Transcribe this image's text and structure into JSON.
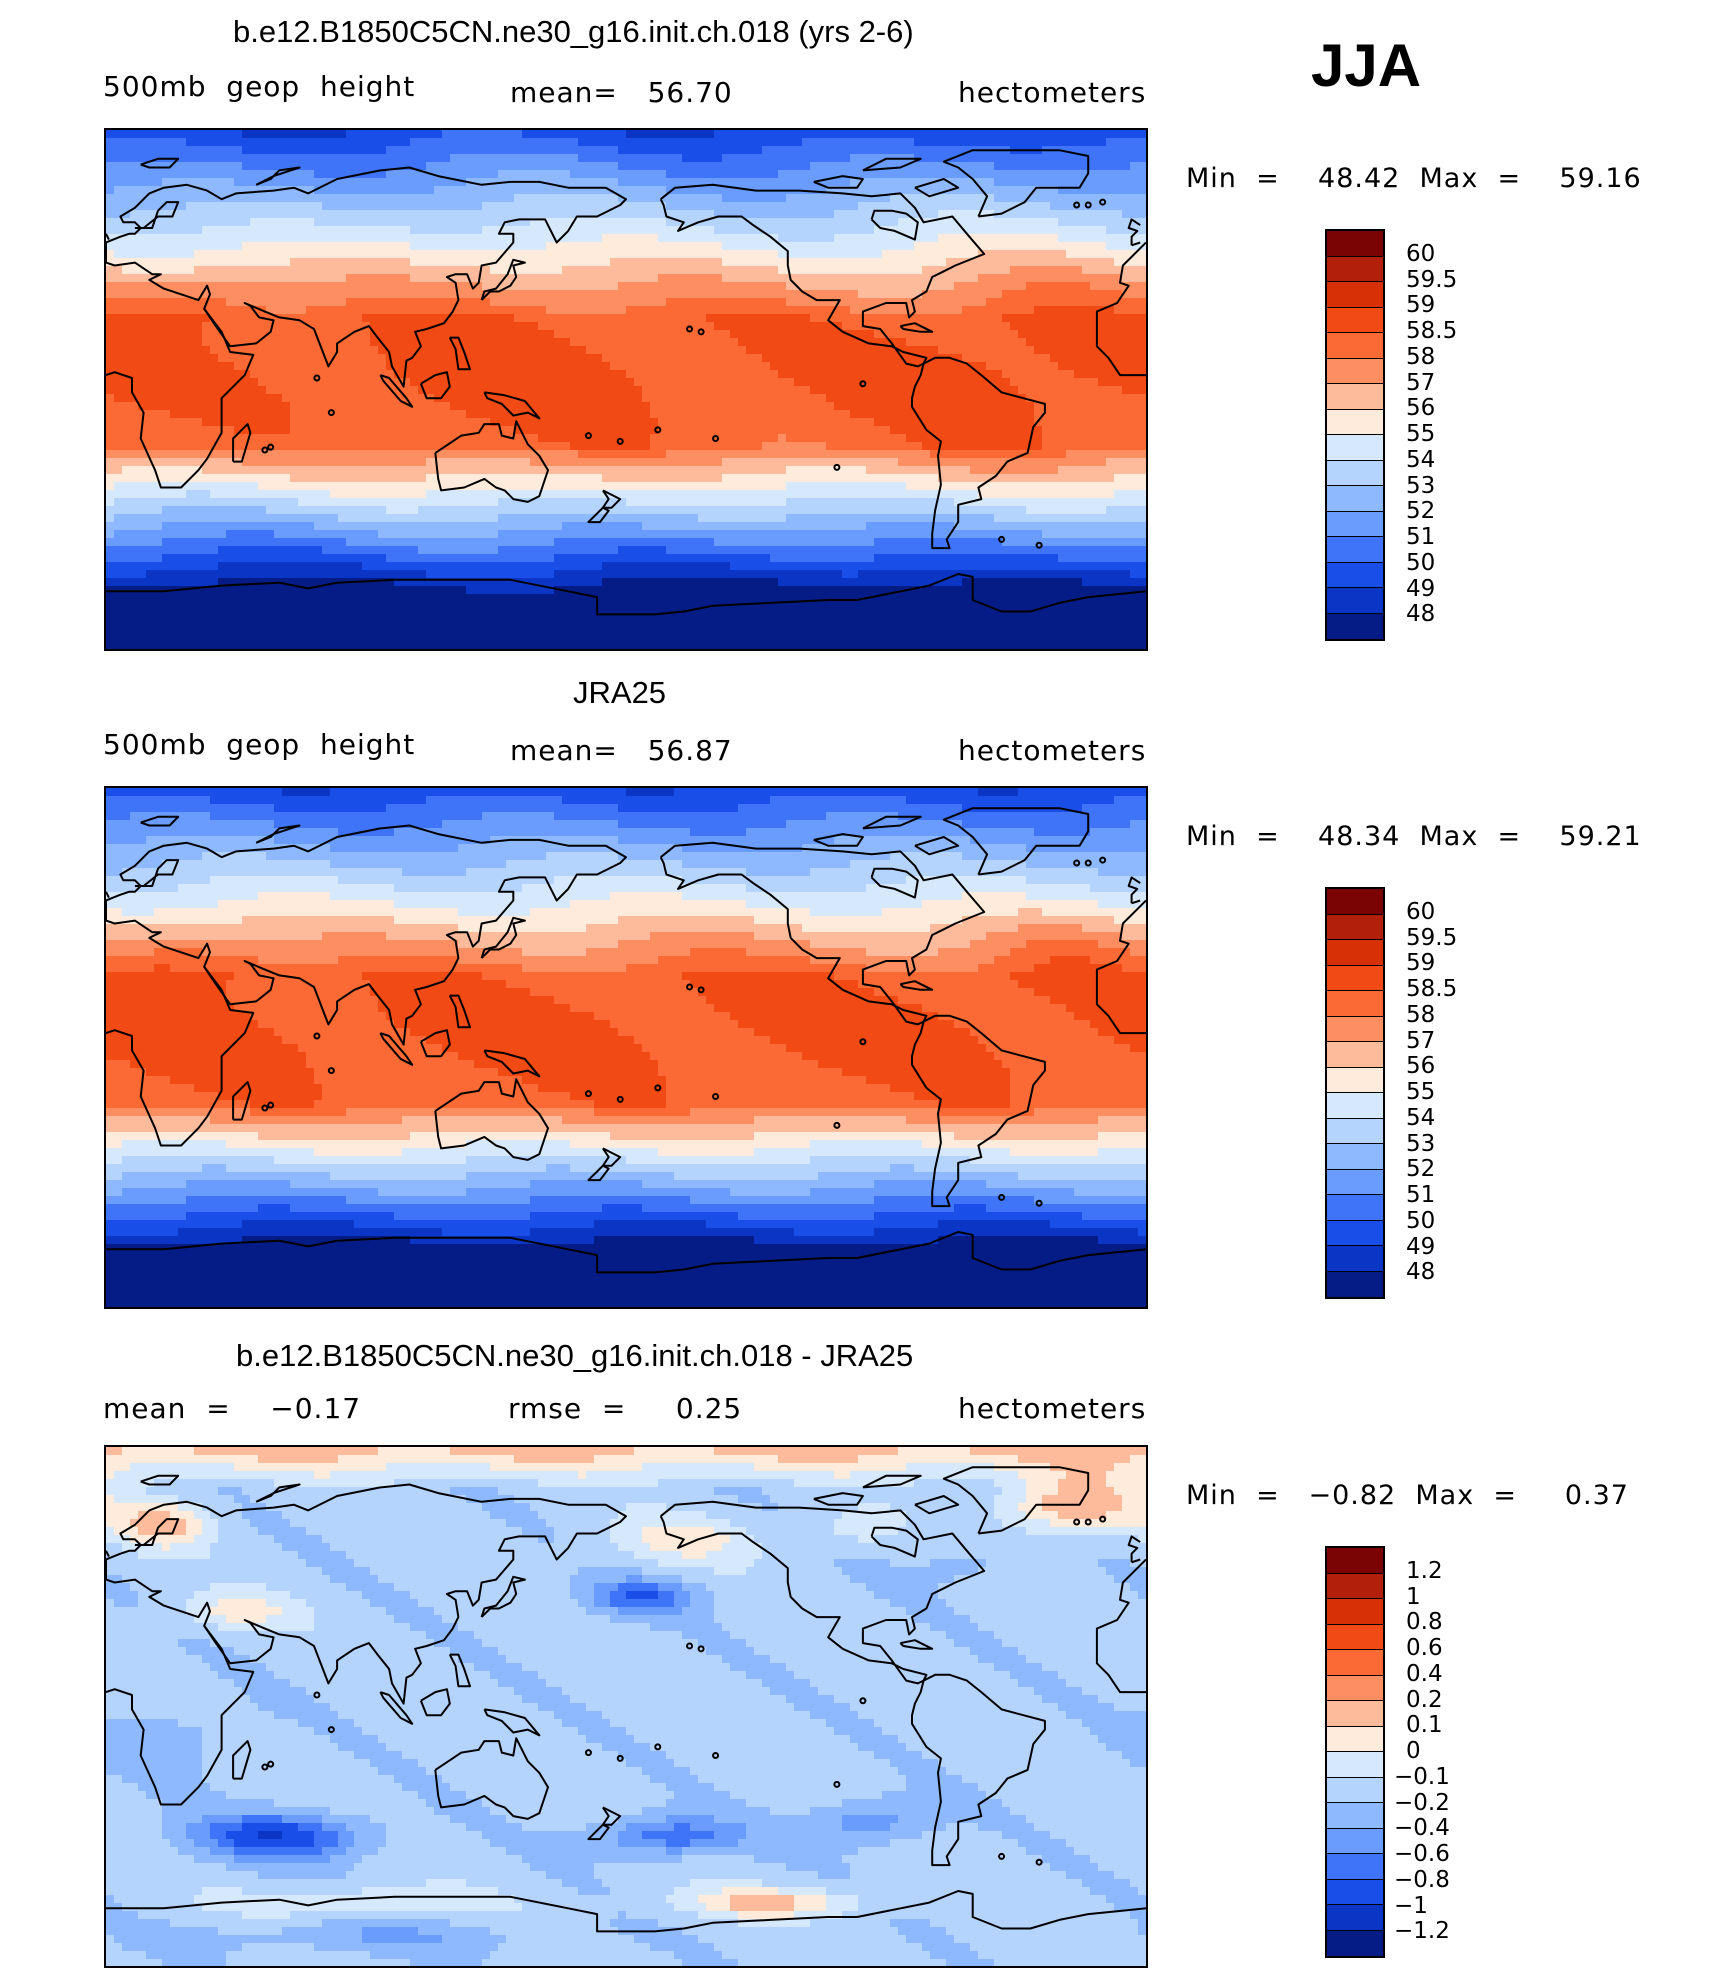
{
  "season": "JJA",
  "panels": [
    {
      "title": "b.e12.B1850C5CN.ne30_g16.init.ch.018 (yrs 2-6)",
      "left_label": "500mb  geop  height",
      "center_label": "mean=   56.70",
      "units": "hectometers",
      "minmax": "Min  =    48.42  Max  =    59.16",
      "map_type": "full-field-model"
    },
    {
      "title": "JRA25",
      "left_label": "500mb  geop  height",
      "center_label": "mean=   56.87",
      "units": "hectometers",
      "minmax": "Min  =    48.34  Max  =    59.21",
      "map_type": "full-field-obs"
    },
    {
      "title": "b.e12.B1850C5CN.ne30_g16.init.ch.018 - JRA25",
      "left_label": "mean  =    −0.17",
      "center_label": "rmse  =     0.25",
      "units": "hectometers",
      "minmax": "Min  =   −0.82  Max  =     0.37",
      "map_type": "difference"
    }
  ],
  "colorbar_full": {
    "labels": [
      "60",
      "59.5",
      "59",
      "58.5",
      "58",
      "57",
      "56",
      "55",
      "54",
      "53",
      "52",
      "51",
      "50",
      "49",
      "48"
    ],
    "colors": [
      "#7a0403",
      "#b21f0a",
      "#d83006",
      "#f24a14",
      "#fb6a35",
      "#fc8e62",
      "#fdbb9c",
      "#feebdb",
      "#d6e8fc",
      "#b4d3fd",
      "#8fb9fe",
      "#6a9cfd",
      "#3f74f8",
      "#1a4ee8",
      "#0b35c4",
      "#051c86"
    ]
  },
  "colorbar_diff": {
    "labels": [
      "1.2",
      "1",
      "0.8",
      "0.6",
      "0.4",
      "0.2",
      "0.1",
      "0",
      "−0.1",
      "−0.2",
      "−0.4",
      "−0.6",
      "−0.8",
      "−1",
      "−1.2"
    ],
    "colors": [
      "#7a0403",
      "#b21f0a",
      "#d83006",
      "#f24a14",
      "#fb6a35",
      "#fc8e62",
      "#fdbb9c",
      "#feebdb",
      "#d6e8fc",
      "#b4d3fd",
      "#8fb9fe",
      "#6a9cfd",
      "#3f74f8",
      "#1a4ee8",
      "#0b35c4",
      "#051c86"
    ]
  }
}
